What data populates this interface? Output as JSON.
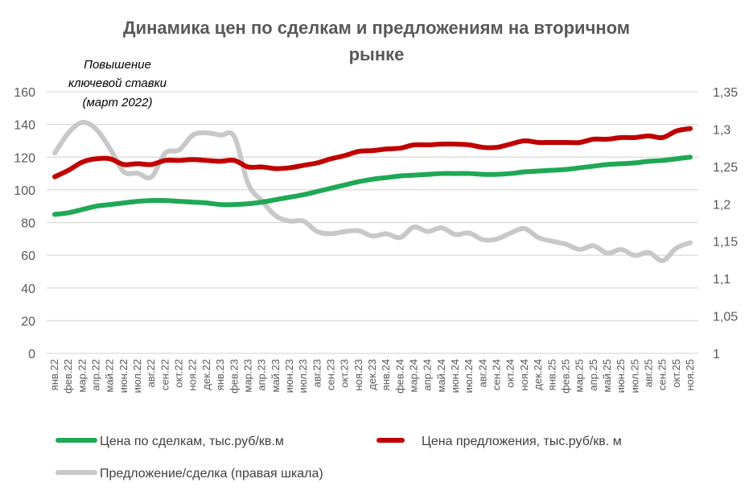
{
  "chart_data": {
    "type": "line",
    "title": "Динамика цен по сделкам и предложениям на вторичном рынке",
    "title_lines": [
      "Динамика цен по сделкам и предложениям на вторичном",
      "рынке"
    ],
    "annotation": [
      "Повышение",
      "ключевой ставки",
      "(март 2022)"
    ],
    "categories": [
      "янв.22",
      "фев.22",
      "мар.22",
      "апр.22",
      "май.22",
      "июн.22",
      "июл.22",
      "авг.22",
      "сен.22",
      "окт.22",
      "ноя.22",
      "дек.22",
      "янв.23",
      "фев.23",
      "мар.23",
      "апр.23",
      "май.23",
      "июн.23",
      "июл.23",
      "авг.23",
      "сен.23",
      "окт.23",
      "ноя.23",
      "дек.23",
      "янв.24",
      "фев.24",
      "мар.24",
      "апр.24",
      "май.24",
      "июн.24",
      "июл.24",
      "авг.24",
      "сен.24",
      "окт.24",
      "ноя.24",
      "дек.24",
      "янв.25",
      "фев.25",
      "мар.25",
      "апр.25",
      "май.25",
      "июн.25",
      "июл.25",
      "авг.25",
      "сен.25",
      "окт.25",
      "ноя.25"
    ],
    "y_left": {
      "range": [
        0,
        160
      ],
      "ticks": [
        "0",
        "20",
        "40",
        "60",
        "80",
        "100",
        "120",
        "140",
        "160"
      ],
      "tick_values": [
        0,
        20,
        40,
        60,
        80,
        100,
        120,
        140,
        160
      ]
    },
    "y_right": {
      "range": [
        1,
        1.35
      ],
      "ticks": [
        "1",
        "1,05",
        "1,1",
        "1,15",
        "1,2",
        "1,25",
        "1,3",
        "1,35"
      ],
      "tick_values": [
        1,
        1.05,
        1.1,
        1.15,
        1.2,
        1.25,
        1.3,
        1.35
      ]
    },
    "grid": true,
    "legend_position": "bottom",
    "series": [
      {
        "name": "Цена по сделкам, тыс.руб/кв.м",
        "axis": "left",
        "color": "#1fa855",
        "values": [
          85,
          86,
          88,
          90,
          91,
          92,
          93,
          93.5,
          93.5,
          93,
          92.5,
          92,
          91,
          91,
          91.5,
          92.5,
          94,
          95.5,
          97,
          99,
          101,
          103,
          105,
          106.5,
          107.5,
          108.5,
          109,
          109.5,
          110,
          110,
          110,
          109.5,
          109.5,
          110,
          111,
          111.5,
          112,
          112.5,
          113.5,
          114.5,
          115.5,
          116,
          116.5,
          117.5,
          118,
          119,
          120
        ]
      },
      {
        "name": "Цена предложения, тыс.руб/кв. м",
        "axis": "left",
        "color": "#c00000",
        "values": [
          108,
          112,
          117,
          119,
          119,
          115.5,
          116,
          115.5,
          118,
          118,
          118.5,
          118,
          117.5,
          118,
          114,
          114,
          113,
          113.5,
          115,
          116.5,
          119,
          121,
          123.5,
          124,
          125,
          125.5,
          127.5,
          127.5,
          128,
          128,
          127.5,
          126,
          126,
          128,
          130,
          129,
          129,
          129,
          129,
          131,
          131,
          132,
          132,
          133,
          132,
          136,
          137.5
        ]
      },
      {
        "name": "Предложение/сделка (правая шкала)",
        "axis": "right",
        "color": "#c8c8c8",
        "values": [
          1.268,
          1.295,
          1.309,
          1.3,
          1.274,
          1.243,
          1.241,
          1.236,
          1.268,
          1.272,
          1.292,
          1.295,
          1.292,
          1.29,
          1.227,
          1.204,
          1.184,
          1.177,
          1.177,
          1.163,
          1.16,
          1.163,
          1.164,
          1.157,
          1.16,
          1.155,
          1.169,
          1.163,
          1.168,
          1.159,
          1.161,
          1.152,
          1.153,
          1.161,
          1.167,
          1.155,
          1.15,
          1.146,
          1.139,
          1.144,
          1.134,
          1.139,
          1.131,
          1.135,
          1.124,
          1.141,
          1.148
        ]
      }
    ]
  }
}
